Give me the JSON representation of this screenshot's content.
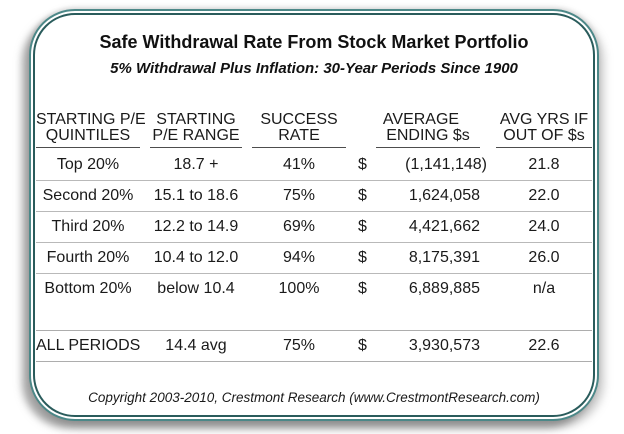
{
  "chart_data": {
    "type": "table",
    "title": "Safe Withdrawal Rate From Stock Market Portfolio",
    "subtitle": "5% Withdrawal Plus Inflation: 30-Year Periods Since 1900",
    "columns": [
      {
        "line1": "STARTING P/E",
        "line2": "QUINTILES"
      },
      {
        "line1": "STARTING",
        "line2": "P/E RANGE"
      },
      {
        "line1": "SUCCESS",
        "line2": "RATE"
      },
      {
        "line1": "AVERAGE",
        "line2": "ENDING $s"
      },
      {
        "line1": "AVG YRS IF",
        "line2": "OUT OF $s"
      }
    ],
    "rows": [
      {
        "quintile": "Top 20%",
        "pe_range": "18.7 +",
        "success_rate": "41%",
        "currency": "$",
        "avg_ending_dollars": "(1,141,148)",
        "avg_years_if_out": "21.8"
      },
      {
        "quintile": "Second 20%",
        "pe_range": "15.1 to 18.6",
        "success_rate": "75%",
        "currency": "$",
        "avg_ending_dollars": "1,624,058",
        "avg_years_if_out": "22.0"
      },
      {
        "quintile": "Third 20%",
        "pe_range": "12.2 to 14.9",
        "success_rate": "69%",
        "currency": "$",
        "avg_ending_dollars": "4,421,662",
        "avg_years_if_out": "24.0"
      },
      {
        "quintile": "Fourth 20%",
        "pe_range": "10.4 to 12.0",
        "success_rate": "94%",
        "currency": "$",
        "avg_ending_dollars": "8,175,391",
        "avg_years_if_out": "26.0"
      },
      {
        "quintile": "Bottom 20%",
        "pe_range": "below 10.4",
        "success_rate": "100%",
        "currency": "$",
        "avg_ending_dollars": "6,889,885",
        "avg_years_if_out": "n/a"
      }
    ],
    "summary_row": {
      "label": "ALL PERIODS",
      "pe_range": "14.4 avg",
      "success_rate": "75%",
      "currency": "$",
      "avg_ending_dollars": "3,930,573",
      "avg_years_if_out": "22.6"
    },
    "footer": "Copyright 2003-2010, Crestmont Research (www.CrestmontResearch.com)",
    "colors": {
      "border_teal_dark": "#2a5c5c",
      "border_teal_light": "#4c8888",
      "header_underline": "#4d4d4d",
      "row_divider": "#b9b9b9",
      "text": "#1a1a1a",
      "background": "#ffffff"
    }
  }
}
